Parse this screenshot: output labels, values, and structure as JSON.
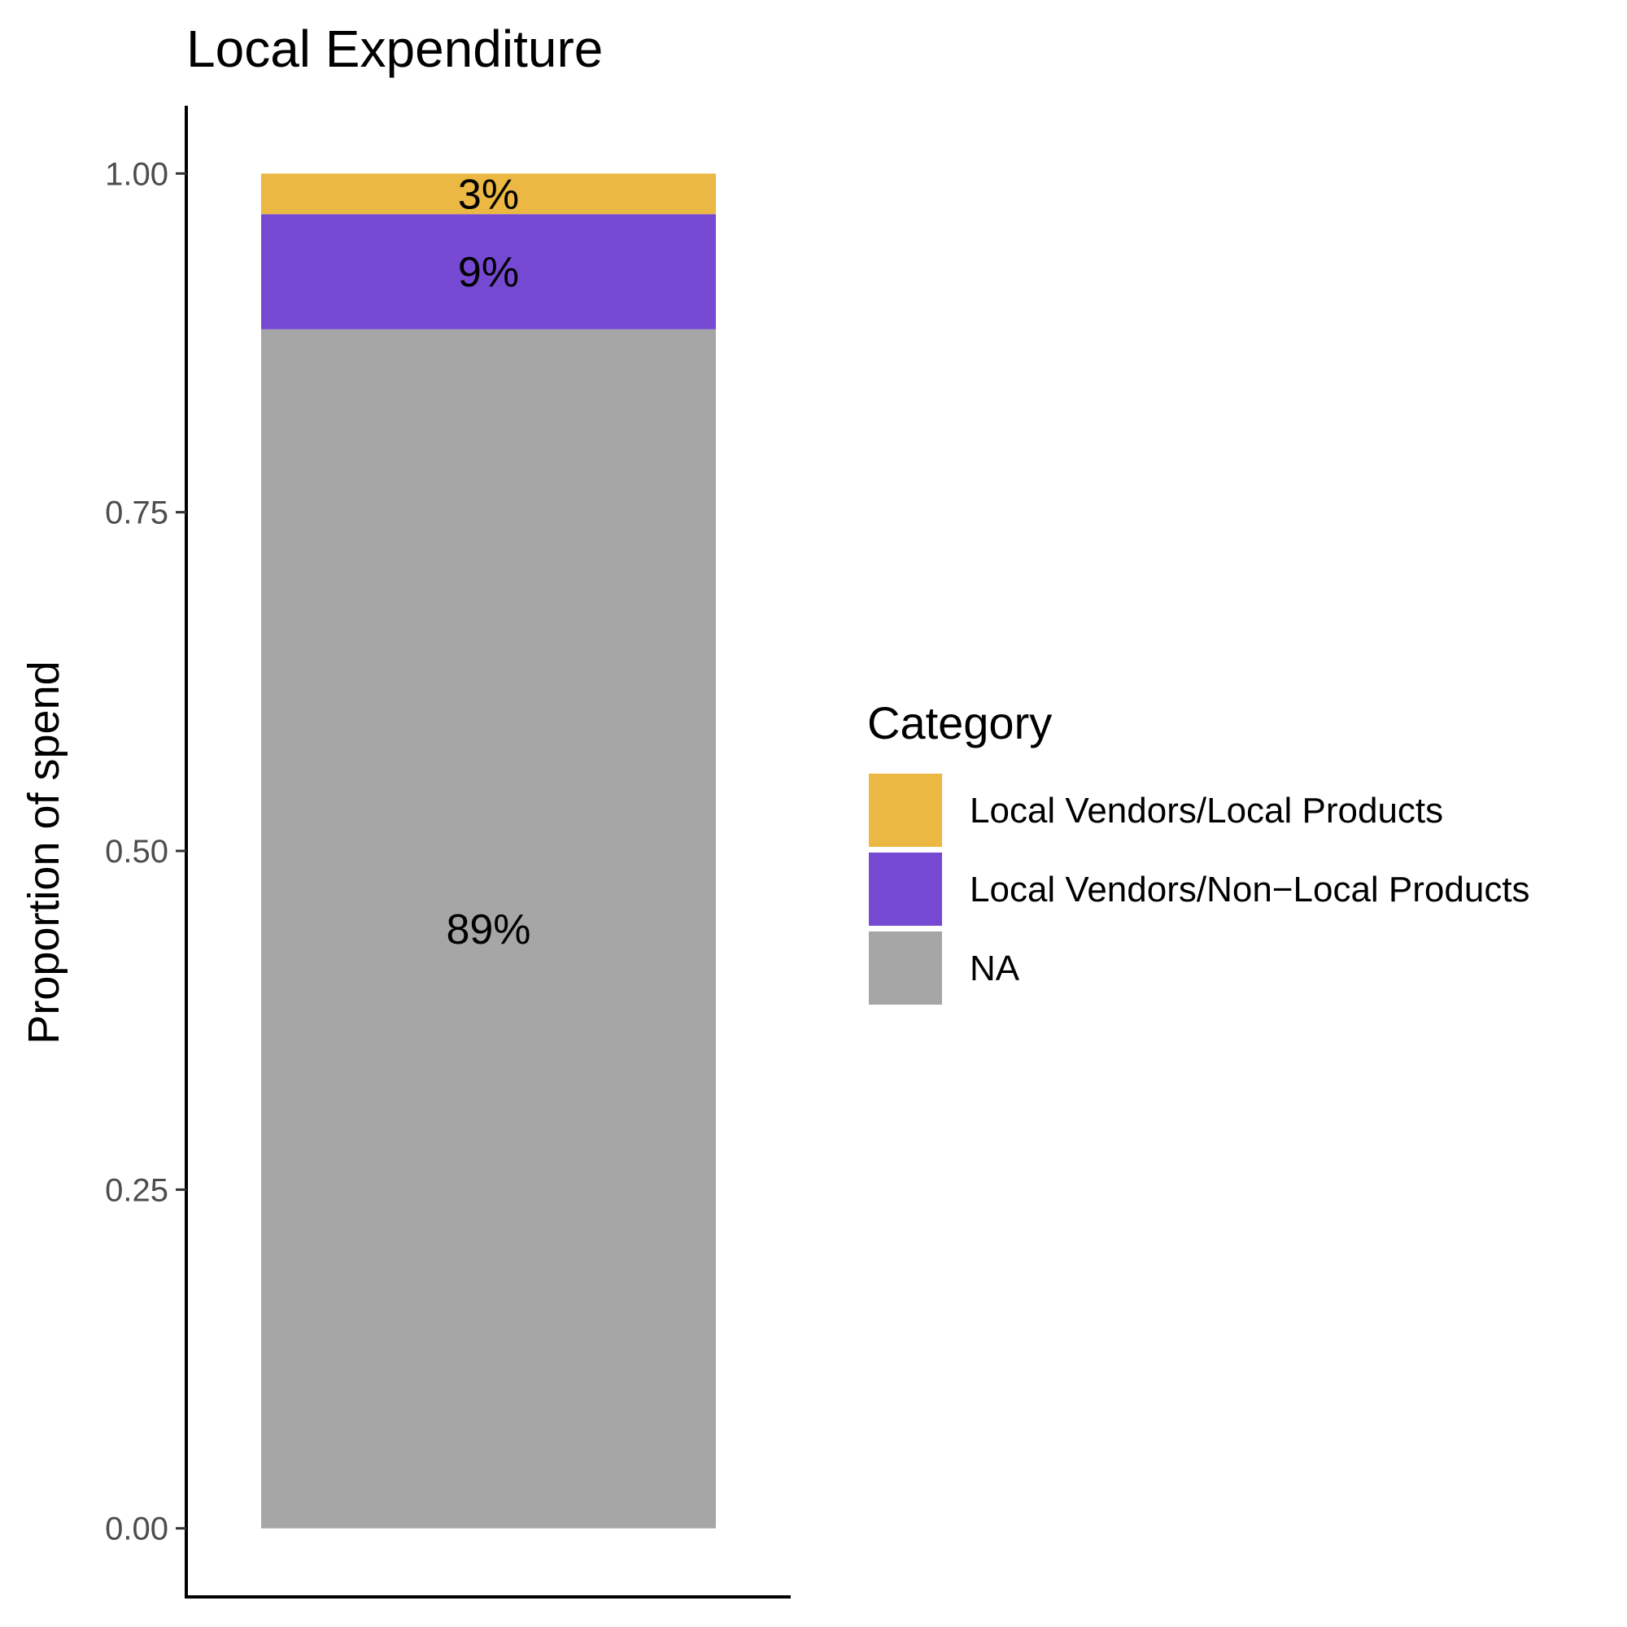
{
  "chart_data": {
    "type": "bar",
    "stacked": true,
    "title": "Local Expenditure",
    "xlabel": "",
    "ylabel": "Proportion of spend",
    "ylim": [
      -0.05,
      1.05
    ],
    "y_ticks": [
      0,
      0.25,
      0.5,
      0.75,
      1
    ],
    "y_tick_labels": [
      "0.00",
      "0.25",
      "0.50",
      "0.75",
      "1.00"
    ],
    "categories": [
      ""
    ],
    "series": [
      {
        "name": "NA",
        "values": [
          0.885
        ],
        "label": "89%",
        "color": "#a6a6a6"
      },
      {
        "name": "Local Vendors/Non−Local Products",
        "values": [
          0.085
        ],
        "label": "9%",
        "color": "#7649d3"
      },
      {
        "name": "Local Vendors/Local Products",
        "values": [
          0.03
        ],
        "label": "3%",
        "color": "#ebb843"
      }
    ],
    "legend": {
      "title": "Category",
      "position": "right",
      "order": [
        "Local Vendors/Local Products",
        "Local Vendors/Non−Local Products",
        "NA"
      ]
    },
    "grid": false
  }
}
